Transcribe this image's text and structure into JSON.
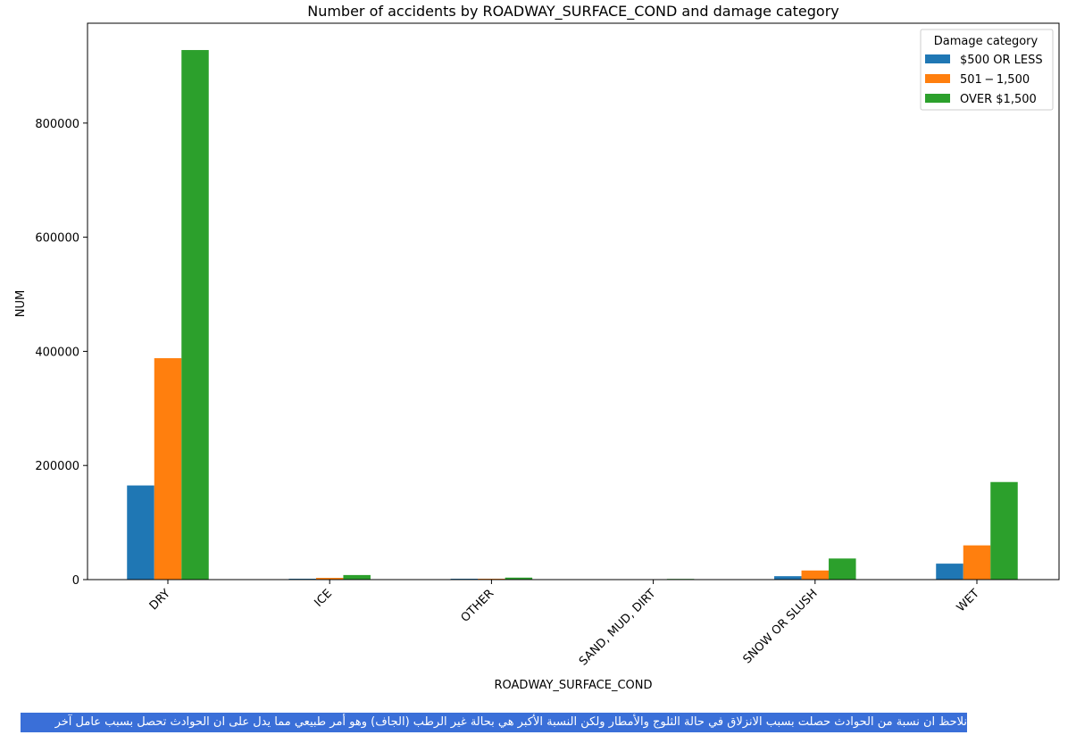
{
  "chart_data": {
    "type": "bar",
    "title": "Number of accidents by ROADWAY_SURFACE_COND and damage category",
    "xlabel": "ROADWAY_SURFACE_COND",
    "ylabel": "NUM",
    "categories": [
      "DRY",
      "ICE",
      "OTHER",
      "SAND, MUD, DIRT",
      "SNOW OR SLUSH",
      "WET"
    ],
    "series": [
      {
        "name": "$500 OR LESS",
        "color": "#1f77b4",
        "values": [
          165000,
          1500,
          1500,
          300,
          6000,
          28000
        ]
      },
      {
        "name": "$501 - $1,500",
        "color": "#ff7f0e",
        "values": [
          388000,
          3000,
          1500,
          400,
          16000,
          60000
        ]
      },
      {
        "name": "OVER $1,500",
        "color": "#2ca02c",
        "values": [
          928000,
          8000,
          3500,
          1200,
          37000,
          171000
        ]
      }
    ],
    "yticks": [
      0,
      200000,
      400000,
      600000,
      800000
    ],
    "ylim": [
      0,
      975000
    ],
    "legend": {
      "title": "Damage category",
      "placement": "top-right"
    },
    "grid": false
  },
  "legend_labels": [
    "$500 OR LESS",
    "501 − 1,500",
    "OVER $1,500"
  ],
  "caption": "نلاحظ ان نسبة من الحوادث حصلت بسبب الانزلاق في حالة الثلوج والأمطار ولكن النسبة الأكبر هي بحالة غير الرطب (الجاف) وهو أمر طبيعي مما يدل على ان الحوادث تحصل بسبب عامل آخر"
}
